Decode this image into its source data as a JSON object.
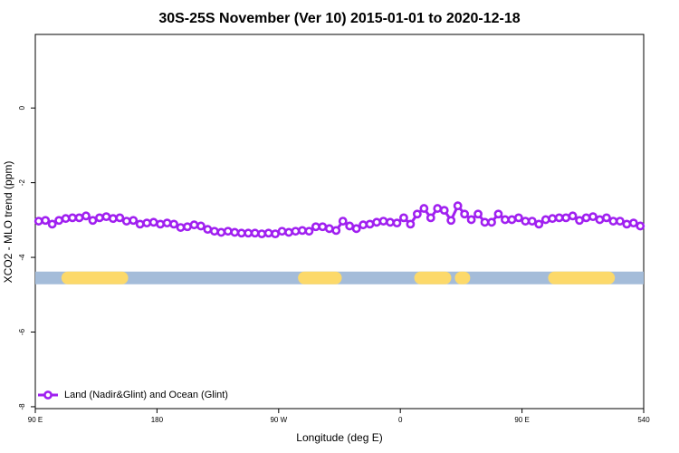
{
  "chart_data": {
    "type": "line",
    "title": "30S-25S November (Ver 10)   2015-01-01 to 2020-12-18",
    "x_label": "Longitude (deg E)",
    "y_label": "XCO2 - MLO trend (ppm)",
    "xlim": [
      90,
      540
    ],
    "ylim": [
      -8.05,
      1.97
    ],
    "xticks": [
      {
        "value": 90,
        "label": "90 E"
      },
      180,
      {
        "value": 270,
        "label": "90 W"
      },
      {
        "value": 360,
        "label": "0"
      },
      {
        "value": 450,
        "label": "90 E"
      },
      540
    ],
    "yticks": [
      0,
      -2,
      -4,
      -6,
      -8
    ],
    "legend": "bottom-left",
    "x": [
      92.5,
      97.5,
      102.5,
      107.5,
      112.5,
      117.5,
      122.5,
      127.5,
      132.5,
      137.5,
      142.5,
      147.5,
      152.5,
      157.5,
      162.5,
      167.5,
      172.5,
      177.5,
      182.5,
      187.5,
      192.5,
      197.5,
      202.5,
      207.5,
      212.5,
      217.5,
      222.5,
      227.5,
      232.5,
      237.5,
      242.5,
      247.5,
      252.5,
      257.5,
      262.5,
      267.5,
      272.5,
      277.5,
      282.5,
      287.5,
      292.5,
      297.5,
      302.5,
      307.5,
      312.5,
      317.5,
      322.5,
      327.5,
      332.5,
      337.5,
      342.5,
      347.5,
      352.5,
      357.5,
      362.5,
      367.5,
      372.5,
      377.5,
      382.5,
      387.5,
      392.5,
      397.5,
      402.5,
      407.5,
      412.5,
      417.5,
      422.5,
      427.5,
      432.5,
      437.5,
      442.5,
      447.5,
      452.5,
      457.5,
      462.5,
      467.5,
      472.5,
      477.5,
      482.5,
      487.5,
      492.5,
      497.5,
      502.5,
      507.5,
      512.5,
      517.5,
      522.5,
      527.5,
      532.5,
      537.5
    ],
    "series": [
      {
        "name": "Land (Nadir&Glint) and Ocean (Glint)",
        "color": "#a020f0",
        "values": [
          -3.03,
          -3.01,
          -3.11,
          -3.01,
          -2.96,
          -2.94,
          -2.94,
          -2.89,
          -3.01,
          -2.94,
          -2.91,
          -2.96,
          -2.94,
          -3.03,
          -3.01,
          -3.11,
          -3.08,
          -3.06,
          -3.11,
          -3.08,
          -3.11,
          -3.2,
          -3.18,
          -3.13,
          -3.16,
          -3.25,
          -3.3,
          -3.33,
          -3.3,
          -3.33,
          -3.35,
          -3.35,
          -3.35,
          -3.37,
          -3.35,
          -3.37,
          -3.3,
          -3.33,
          -3.3,
          -3.28,
          -3.3,
          -3.18,
          -3.18,
          -3.23,
          -3.28,
          -3.03,
          -3.16,
          -3.23,
          -3.13,
          -3.11,
          -3.06,
          -3.03,
          -3.06,
          -3.08,
          -2.94,
          -3.11,
          -2.84,
          -2.69,
          -2.94,
          -2.69,
          -2.74,
          -3.01,
          -2.62,
          -2.84,
          -2.99,
          -2.84,
          -3.06,
          -3.06,
          -2.84,
          -2.99,
          -2.99,
          -2.94,
          -3.03,
          -3.03,
          -3.11,
          -2.99,
          -2.96,
          -2.94,
          -2.94,
          -2.89,
          -3.01,
          -2.94,
          -2.91,
          -2.99,
          -2.94,
          -3.03,
          -3.03,
          -3.11,
          -3.08,
          -3.16
        ]
      }
    ],
    "coverage": {
      "y": -4.55,
      "ocean_color": "#a4bcd9",
      "land_color": "#fcd96a",
      "land": [
        [
          114,
          154
        ],
        [
          289,
          312
        ],
        [
          375,
          393
        ],
        [
          405,
          407
        ],
        [
          474,
          514
        ]
      ]
    }
  }
}
